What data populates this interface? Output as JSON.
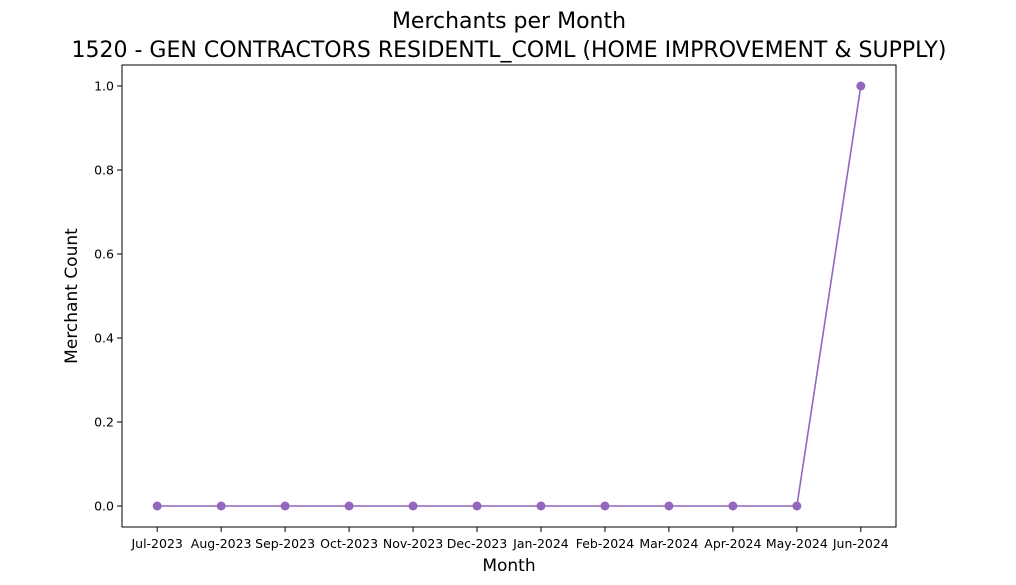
{
  "chart_data": {
    "type": "line",
    "title": "Merchants per Month",
    "subtitle": "1520 - GEN CONTRACTORS RESIDENTL_COML (HOME IMPROVEMENT & SUPPLY)",
    "xlabel": "Month",
    "ylabel": "Merchant Count",
    "categories": [
      "Jul-2023",
      "Aug-2023",
      "Sep-2023",
      "Oct-2023",
      "Nov-2023",
      "Dec-2023",
      "Jan-2024",
      "Feb-2024",
      "Mar-2024",
      "Apr-2024",
      "May-2024",
      "Jun-2024"
    ],
    "values": [
      0,
      0,
      0,
      0,
      0,
      0,
      0,
      0,
      0,
      0,
      0,
      1
    ],
    "ylim": [
      -0.05,
      1.05
    ],
    "yticks": [
      0.0,
      0.2,
      0.4,
      0.6,
      0.8,
      1.0
    ],
    "ytick_labels": [
      "0.0",
      "0.2",
      "0.4",
      "0.6",
      "0.8",
      "1.0"
    ],
    "grid": false,
    "marker": "circle",
    "color": "#9467bd"
  }
}
